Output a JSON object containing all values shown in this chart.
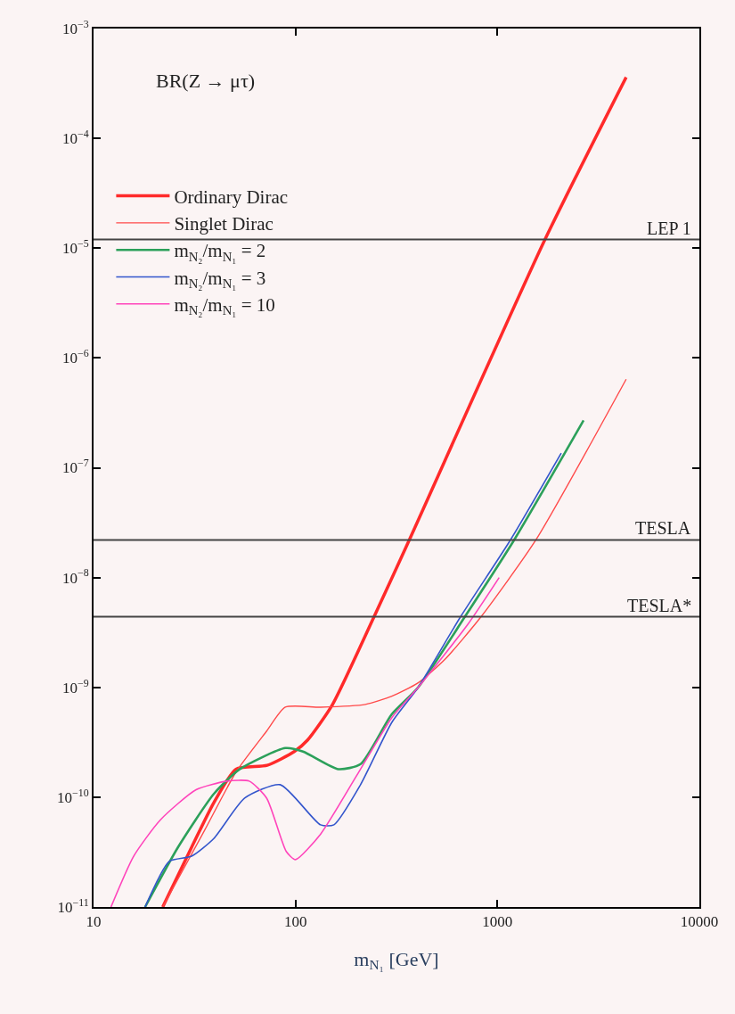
{
  "chart_data": {
    "type": "line",
    "xlabel": "m$_{N₁}$ [GeV]",
    "annotations": [
      "BR(Z → μτ)"
    ],
    "log": "xy",
    "grid": false,
    "legend": "top left",
    "marker": "none",
    "line_style": "solid",
    "xlim": [
      10,
      10000
    ],
    "xticks": [
      10,
      100,
      1000,
      10000
    ],
    "ylim": [
      1e-11,
      0.001
    ],
    "yticks": [
      {
        "value": 1e-11,
        "label": "10$^{−11}$"
      },
      {
        "value": 1e-10,
        "label": "10$^{−10}$"
      },
      {
        "value": 1e-09,
        "label": "10$^{−9}$"
      },
      {
        "value": 1e-08,
        "label": "10$^{−8}$"
      },
      {
        "value": 1e-07,
        "label": "10$^{−7}$"
      },
      {
        "value": 1e-06,
        "label": "10$^{−6}$"
      },
      {
        "value": 1e-05,
        "label": "10$^{−5}$"
      },
      {
        "value": 0.0001,
        "label": "10$^{−4}$"
      },
      {
        "value": 0.001,
        "label": "10$^{−3}$"
      }
    ],
    "ref_lines": [
      {
        "axis": "y",
        "value": 1.2e-05,
        "label": "LEP 1",
        "color": "#444444"
      },
      {
        "axis": "y",
        "value": 2.2e-08,
        "label": "TESLA",
        "color": "#444444"
      },
      {
        "axis": "y",
        "value": 4.4e-09,
        "label": "TESLA*",
        "color": "#444444"
      }
    ],
    "series": [
      {
        "name": "Ordinary Dirac",
        "color": "#ff2a2a",
        "x": [
          22,
          30.6,
          39.4,
          50.8,
          72.4,
          98.6,
          114.6,
          152,
          245,
          366,
          1720,
          4340
        ],
        "values": [
          1e-11,
          3.5e-11,
          8.9e-11,
          1.8e-10,
          1.95e-10,
          2.6e-10,
          3.3e-10,
          6.9e-10,
          4.4e-09,
          2.2e-08,
          1.2e-05,
          0.00036
        ]
      },
      {
        "name": "Singlet Dirac",
        "color": "#ff4a4a",
        "x": [
          22,
          35.5,
          50.8,
          72,
          89,
          133,
          222,
          300,
          405,
          550,
          830,
          1550,
          4340
        ],
        "values": [
          1e-11,
          5e-11,
          1.7e-10,
          4e-10,
          6.6e-10,
          6.6e-10,
          7e-10,
          8.3e-10,
          1.1e-09,
          1.8e-09,
          4.4e-09,
          2.2e-08,
          6.4e-07
        ]
      },
      {
        "name": "m$_{N₂}$/m$_{N₁}$ = 2",
        "color": "#2ca05a",
        "x": [
          18,
          26.2,
          39.4,
          53,
          89,
          109,
          163,
          210,
          300,
          405,
          690,
          1210,
          2670
        ],
        "values": [
          1e-11,
          3.5e-11,
          1.07e-10,
          1.8e-10,
          2.8e-10,
          2.6e-10,
          1.8e-10,
          2e-10,
          5.7e-10,
          1e-09,
          4.4e-09,
          2.2e-08,
          2.7e-07
        ]
      },
      {
        "name": "m$_{N₂}$/m$_{N₁}$ = 3",
        "color": "#3355cc",
        "x": [
          18,
          23.7,
          30.6,
          39.4,
          56,
          84,
          133,
          155,
          210,
          300,
          405,
          657,
          1160,
          2070
        ],
        "values": [
          1e-11,
          2.6e-11,
          2.9e-11,
          4.2e-11,
          9.8e-11,
          1.3e-10,
          5.6e-11,
          5.6e-11,
          1.3e-10,
          4.8e-10,
          1e-09,
          4.4e-09,
          2.2e-08,
          1.36e-07
        ]
      },
      {
        "name": "m$_{N₂}$/m$_{N₁}$ = 10",
        "color": "#ff44bb",
        "x": [
          12.2,
          15.8,
          21.4,
          32.2,
          45.8,
          59,
          72,
          90,
          100,
          133,
          200,
          300,
          405,
          710,
          1020
        ],
        "values": [
          1e-11,
          2.9e-11,
          6.2e-11,
          1.17e-10,
          1.4e-10,
          1.4e-10,
          9.8e-11,
          3.2e-11,
          2.7e-11,
          4.6e-11,
          1.55e-10,
          5.3e-10,
          1e-09,
          3.7e-09,
          1e-08
        ]
      }
    ]
  }
}
